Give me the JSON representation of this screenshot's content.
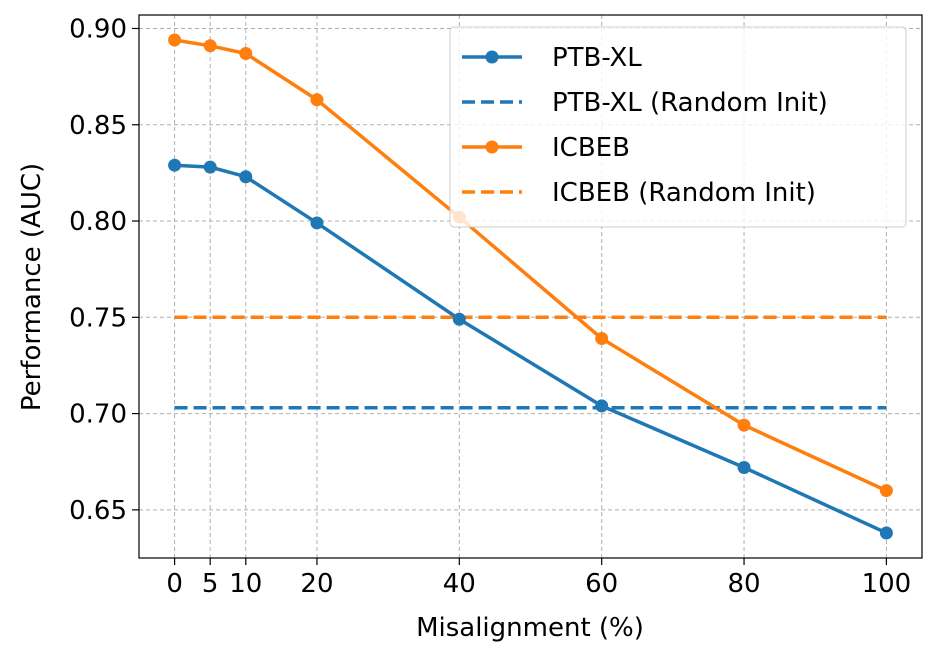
{
  "chart_data": {
    "type": "line",
    "title": "",
    "xlabel": "Misalignment (%)",
    "ylabel": "Performance (AUC)",
    "x": [
      0,
      5,
      10,
      20,
      40,
      60,
      80,
      100
    ],
    "xticks": [
      "0",
      "5",
      "10",
      "20",
      "40",
      "60",
      "80",
      "100"
    ],
    "yticks": [
      "0.65",
      "0.70",
      "0.75",
      "0.80",
      "0.85",
      "0.90"
    ],
    "ytick_values": [
      0.65,
      0.7,
      0.75,
      0.8,
      0.85,
      0.9
    ],
    "xlim": [
      -5,
      105
    ],
    "ylim": [
      0.625,
      0.907
    ],
    "grid": true,
    "legend_position": "top-right",
    "series": [
      {
        "name": "PTB-XL",
        "style": "solid-marker",
        "color": "#1f77b4",
        "values": [
          0.829,
          0.828,
          0.823,
          0.799,
          0.749,
          0.704,
          0.672,
          0.638
        ]
      },
      {
        "name": "PTB-XL (Random Init)",
        "style": "dashed",
        "color": "#1f77b4",
        "values": [
          0.703,
          0.703,
          0.703,
          0.703,
          0.703,
          0.703,
          0.703,
          0.703
        ]
      },
      {
        "name": "ICBEB",
        "style": "solid-marker",
        "color": "#ff7f0e",
        "values": [
          0.894,
          0.891,
          0.887,
          0.863,
          0.802,
          0.739,
          0.694,
          0.66
        ]
      },
      {
        "name": "ICBEB (Random Init)",
        "style": "dashed",
        "color": "#ff7f0e",
        "values": [
          0.75,
          0.75,
          0.75,
          0.75,
          0.75,
          0.75,
          0.75,
          0.75
        ]
      }
    ]
  }
}
